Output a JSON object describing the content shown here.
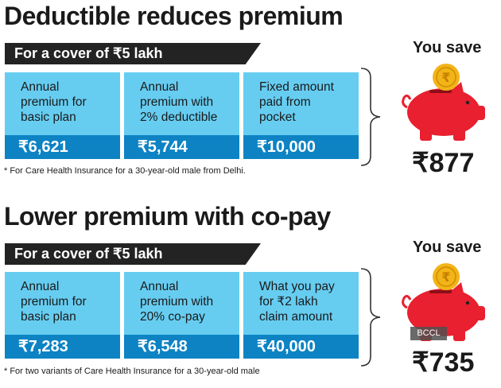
{
  "section1": {
    "title": "Deductible reduces premium",
    "cover": "For a cover of ₹5 lakh",
    "boxes": [
      {
        "label": [
          "Annual",
          "premium for",
          "basic plan"
        ],
        "value": "₹6,621"
      },
      {
        "label": [
          "Annual",
          "premium with",
          "2% deductible"
        ],
        "value": "₹5,744"
      },
      {
        "label": [
          "Fixed amount",
          "paid from",
          "pocket"
        ],
        "value": "₹10,000"
      }
    ],
    "footnote": "* For Care Health Insurance for a 30-year-old male from Delhi.",
    "you_save_label": "You save",
    "you_save_amount": "₹877",
    "coin_symbol": "₹"
  },
  "section2": {
    "title": "Lower premium with co-pay",
    "cover": "For a cover of ₹5 lakh",
    "boxes": [
      {
        "label": [
          "Annual",
          "premium for",
          "basic plan"
        ],
        "value": "₹7,283"
      },
      {
        "label": [
          "Annual",
          "premium with",
          "20% co-pay"
        ],
        "value": "₹6,548"
      },
      {
        "label": [
          "What you pay",
          "for ₹2 lakh",
          "claim amount"
        ],
        "value": "₹40,000"
      }
    ],
    "footnote": "* For two variants of Care Health Insurance for a 30-year-old male",
    "you_save_label": "You save",
    "you_save_amount": "₹735",
    "coin_symbol": "₹",
    "watermark": "BCCL"
  },
  "colors": {
    "box_light": "#66cdf1",
    "box_dark": "#0d83c4",
    "bar": "#232323",
    "piggy": "#e8202f",
    "coin": "#f2b418"
  },
  "icons": [
    "piggy-bank-icon",
    "coin-icon",
    "bracket-icon"
  ]
}
